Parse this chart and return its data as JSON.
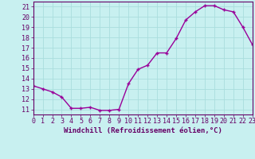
{
  "x": [
    0,
    1,
    2,
    3,
    4,
    5,
    6,
    7,
    8,
    9,
    10,
    11,
    12,
    13,
    14,
    15,
    16,
    17,
    18,
    19,
    20,
    21,
    22,
    23
  ],
  "y": [
    13.3,
    13.0,
    12.7,
    12.2,
    11.1,
    11.1,
    11.2,
    10.9,
    10.9,
    11.0,
    13.5,
    14.9,
    15.3,
    16.5,
    16.5,
    17.9,
    19.7,
    20.5,
    21.1,
    21.1,
    20.7,
    20.5,
    19.0,
    17.3
  ],
  "xlim": [
    0,
    23
  ],
  "ylim": [
    10.5,
    21.5
  ],
  "yticks": [
    11,
    12,
    13,
    14,
    15,
    16,
    17,
    18,
    19,
    20,
    21
  ],
  "xticks": [
    0,
    1,
    2,
    3,
    4,
    5,
    6,
    7,
    8,
    9,
    10,
    11,
    12,
    13,
    14,
    15,
    16,
    17,
    18,
    19,
    20,
    21,
    22,
    23
  ],
  "xlabel": "Windchill (Refroidissement éolien,°C)",
  "line_color": "#990099",
  "marker_color": "#990099",
  "bg_color": "#c8f0f0",
  "grid_color": "#aadddd",
  "xlabel_fontsize": 6.5,
  "tick_fontsize": 6.0,
  "marker_size": 2.5,
  "linewidth": 1.0
}
